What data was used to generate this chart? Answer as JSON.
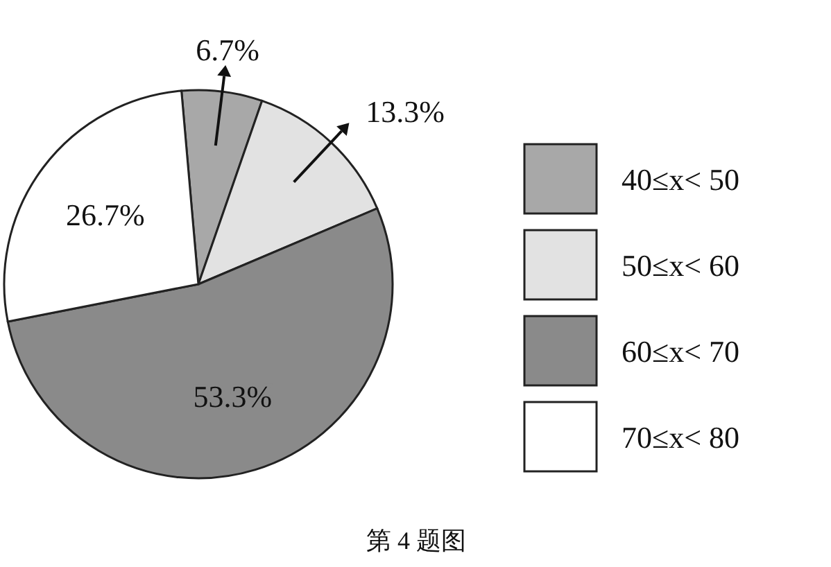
{
  "chart_data": {
    "type": "pie",
    "categories": [
      "40≤x< 50",
      "50≤x< 60",
      "60≤x< 70",
      "70≤x< 80"
    ],
    "values": [
      6.7,
      13.3,
      53.3,
      26.7
    ],
    "value_labels": [
      "6.7%",
      "13.3%",
      "53.3%",
      "26.7%"
    ],
    "colors": [
      "#a8a8a8",
      "#e2e2e2",
      "#8a8a8a",
      "#ffffff"
    ],
    "legend": "right",
    "annotations": [
      "第 4 题图"
    ]
  }
}
